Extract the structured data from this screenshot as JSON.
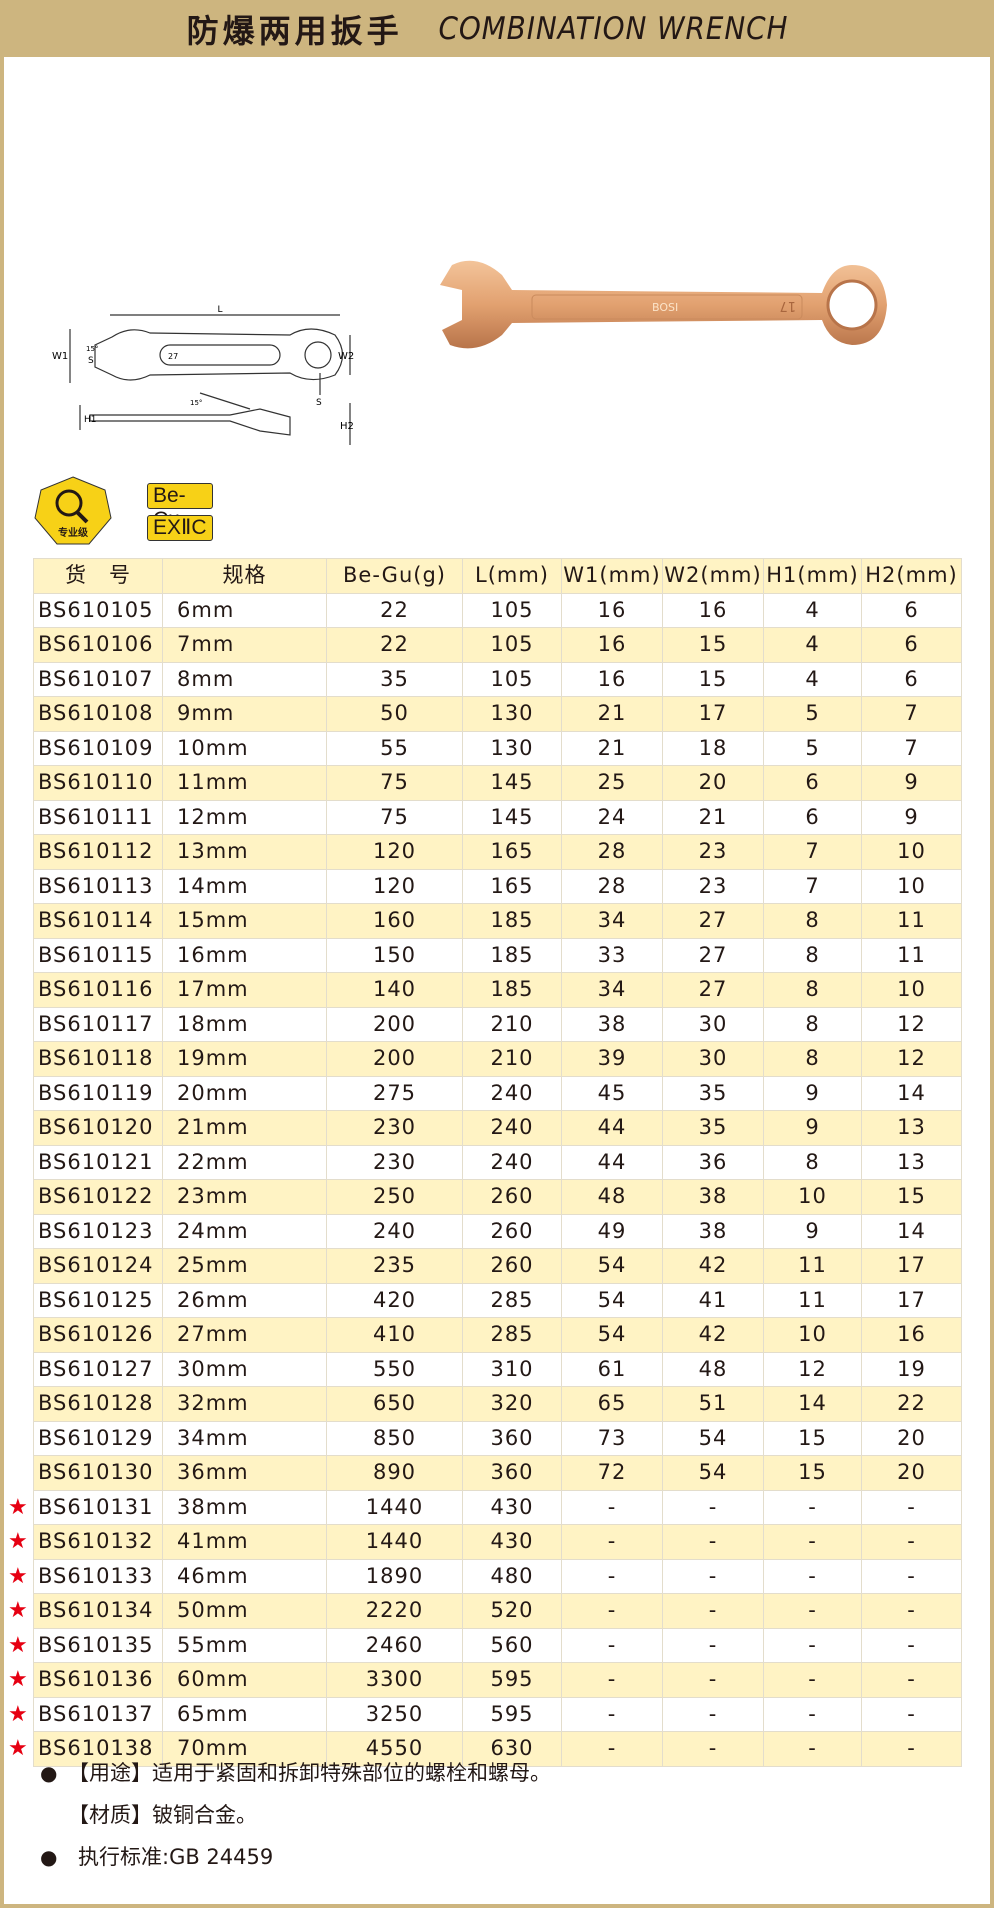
{
  "header": {
    "title_cn": "防爆两用扳手",
    "title_en": "COMBINATION WRENCH"
  },
  "diagram": {
    "labels": {
      "length": "L",
      "w1": "W1",
      "w2": "W2",
      "s_open": "S",
      "s_ring": "S",
      "h1": "H1",
      "h2": "H2",
      "angle": "15°",
      "size_mark": "27"
    }
  },
  "wrench_photo": {
    "brand_mark": "BOSI",
    "size_mark": "17"
  },
  "badge": {
    "icon_text": "专业级",
    "material": "Be-Cu",
    "rating": "EXⅡC",
    "color": "#f7d117"
  },
  "colors": {
    "header": "#cdb57f",
    "row_highlight": "#fff3c4",
    "star": "#e60012"
  },
  "table": {
    "headers": [
      "货　号",
      "规格",
      "Be-Gu(g)",
      "L(mm)",
      "W1(mm)",
      "W2(mm)",
      "H1(mm)",
      "H2(mm)"
    ],
    "rows": [
      {
        "star": false,
        "cells": [
          "BS610105",
          "6mm",
          "22",
          "105",
          "16",
          "16",
          "4",
          "6"
        ]
      },
      {
        "star": false,
        "cells": [
          "BS610106",
          "7mm",
          "22",
          "105",
          "16",
          "15",
          "4",
          "6"
        ]
      },
      {
        "star": false,
        "cells": [
          "BS610107",
          "8mm",
          "35",
          "105",
          "16",
          "15",
          "4",
          "6"
        ]
      },
      {
        "star": false,
        "cells": [
          "BS610108",
          "9mm",
          "50",
          "130",
          "21",
          "17",
          "5",
          "7"
        ]
      },
      {
        "star": false,
        "cells": [
          "BS610109",
          "10mm",
          "55",
          "130",
          "21",
          "18",
          "5",
          "7"
        ]
      },
      {
        "star": false,
        "cells": [
          "BS610110",
          "11mm",
          "75",
          "145",
          "25",
          "20",
          "6",
          "9"
        ]
      },
      {
        "star": false,
        "cells": [
          "BS610111",
          "12mm",
          "75",
          "145",
          "24",
          "21",
          "6",
          "9"
        ]
      },
      {
        "star": false,
        "cells": [
          "BS610112",
          "13mm",
          "120",
          "165",
          "28",
          "23",
          "7",
          "10"
        ]
      },
      {
        "star": false,
        "cells": [
          "BS610113",
          "14mm",
          "120",
          "165",
          "28",
          "23",
          "7",
          "10"
        ]
      },
      {
        "star": false,
        "cells": [
          "BS610114",
          "15mm",
          "160",
          "185",
          "34",
          "27",
          "8",
          "11"
        ]
      },
      {
        "star": false,
        "cells": [
          "BS610115",
          "16mm",
          "150",
          "185",
          "33",
          "27",
          "8",
          "11"
        ]
      },
      {
        "star": false,
        "cells": [
          "BS610116",
          "17mm",
          "140",
          "185",
          "34",
          "27",
          "8",
          "10"
        ]
      },
      {
        "star": false,
        "cells": [
          "BS610117",
          "18mm",
          "200",
          "210",
          "38",
          "30",
          "8",
          "12"
        ]
      },
      {
        "star": false,
        "cells": [
          "BS610118",
          "19mm",
          "200",
          "210",
          "39",
          "30",
          "8",
          "12"
        ]
      },
      {
        "star": false,
        "cells": [
          "BS610119",
          "20mm",
          "275",
          "240",
          "45",
          "35",
          "9",
          "14"
        ]
      },
      {
        "star": false,
        "cells": [
          "BS610120",
          "21mm",
          "230",
          "240",
          "44",
          "35",
          "9",
          "13"
        ]
      },
      {
        "star": false,
        "cells": [
          "BS610121",
          "22mm",
          "230",
          "240",
          "44",
          "36",
          "8",
          "13"
        ]
      },
      {
        "star": false,
        "cells": [
          "BS610122",
          "23mm",
          "250",
          "260",
          "48",
          "38",
          "10",
          "15"
        ]
      },
      {
        "star": false,
        "cells": [
          "BS610123",
          "24mm",
          "240",
          "260",
          "49",
          "38",
          "9",
          "14"
        ]
      },
      {
        "star": false,
        "cells": [
          "BS610124",
          "25mm",
          "235",
          "260",
          "54",
          "42",
          "11",
          "17"
        ]
      },
      {
        "star": false,
        "cells": [
          "BS610125",
          "26mm",
          "420",
          "285",
          "54",
          "41",
          "11",
          "17"
        ]
      },
      {
        "star": false,
        "cells": [
          "BS610126",
          "27mm",
          "410",
          "285",
          "54",
          "42",
          "10",
          "16"
        ]
      },
      {
        "star": false,
        "cells": [
          "BS610127",
          "30mm",
          "550",
          "310",
          "61",
          "48",
          "12",
          "19"
        ]
      },
      {
        "star": false,
        "cells": [
          "BS610128",
          "32mm",
          "650",
          "320",
          "65",
          "51",
          "14",
          "22"
        ]
      },
      {
        "star": false,
        "cells": [
          "BS610129",
          "34mm",
          "850",
          "360",
          "73",
          "54",
          "15",
          "20"
        ]
      },
      {
        "star": false,
        "cells": [
          "BS610130",
          "36mm",
          "890",
          "360",
          "72",
          "54",
          "15",
          "20"
        ]
      },
      {
        "star": true,
        "cells": [
          "BS610131",
          "38mm",
          "1440",
          "430",
          "-",
          "-",
          "-",
          "-"
        ]
      },
      {
        "star": true,
        "cells": [
          "BS610132",
          "41mm",
          "1440",
          "430",
          "-",
          "-",
          "-",
          "-"
        ]
      },
      {
        "star": true,
        "cells": [
          "BS610133",
          "46mm",
          "1890",
          "480",
          "-",
          "-",
          "-",
          "-"
        ]
      },
      {
        "star": true,
        "cells": [
          "BS610134",
          "50mm",
          "2220",
          "520",
          "-",
          "-",
          "-",
          "-"
        ]
      },
      {
        "star": true,
        "cells": [
          "BS610135",
          "55mm",
          "2460",
          "560",
          "-",
          "-",
          "-",
          "-"
        ]
      },
      {
        "star": true,
        "cells": [
          "BS610136",
          "60mm",
          "3300",
          "595",
          "-",
          "-",
          "-",
          "-"
        ]
      },
      {
        "star": true,
        "cells": [
          "BS610137",
          "65mm",
          "3250",
          "595",
          "-",
          "-",
          "-",
          "-"
        ]
      },
      {
        "star": true,
        "cells": [
          "BS610138",
          "70mm",
          "4550",
          "630",
          "-",
          "-",
          "-",
          "-"
        ]
      }
    ]
  },
  "notes": [
    {
      "bullet": true,
      "text": "【用途】适用于紧固和拆卸特殊部位的螺栓和螺母。"
    },
    {
      "bullet": false,
      "text": "【材质】铍铜合金。"
    },
    {
      "bullet": true,
      "text": "执行标准:GB 24459"
    }
  ]
}
